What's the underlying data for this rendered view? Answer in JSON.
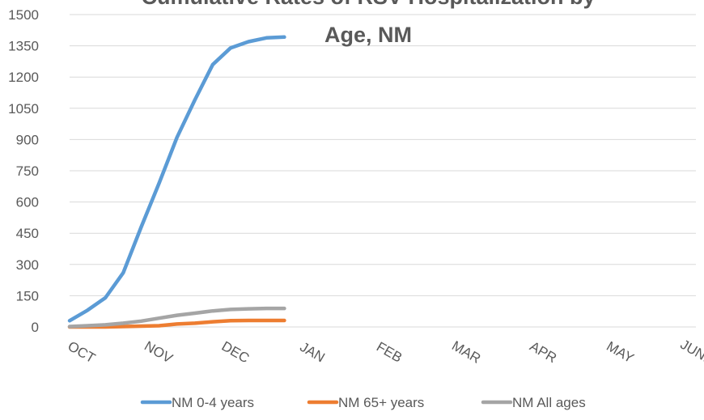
{
  "chart_data": {
    "type": "line",
    "title_lines": [
      "Cumulative Rates of RSV Hospitalization by",
      "Age, NM"
    ],
    "xlabel": "",
    "ylabel": "",
    "x_ticks": [
      "OCT",
      "NOV",
      "DEC",
      "JAN",
      "FEB",
      "MAR",
      "APR",
      "MAY",
      "JUNE"
    ],
    "x_tick_positions": [
      0,
      4.3,
      8.6,
      12.9,
      17.2,
      21.5,
      25.8,
      30.1,
      34.4
    ],
    "y_ticks": [
      0,
      150,
      300,
      450,
      600,
      750,
      900,
      1050,
      1200,
      1350,
      1500
    ],
    "ylim": [
      0,
      1500
    ],
    "xlim": [
      0,
      35
    ],
    "grid": true,
    "legend_position": "bottom",
    "x": [
      0,
      1,
      2,
      3,
      4,
      5,
      6,
      7,
      8,
      9,
      10,
      11,
      12
    ],
    "series": [
      {
        "name": "NM 0-4 years",
        "color": "#5b9bd5",
        "values": [
          30,
          80,
          140,
          260,
          480,
          690,
          910,
          1090,
          1260,
          1340,
          1370,
          1388,
          1392
        ]
      },
      {
        "name": "NM 65+ years",
        "color": "#ed7d31",
        "values": [
          0,
          0,
          0,
          2,
          4,
          6,
          14,
          18,
          25,
          30,
          31,
          31,
          31
        ]
      },
      {
        "name": "NM All ages",
        "color": "#a5a5a5",
        "values": [
          2,
          6,
          10,
          18,
          28,
          42,
          56,
          66,
          77,
          84,
          87,
          89,
          89
        ]
      }
    ],
    "colors": {
      "grid": "#d9d9d9",
      "text": "#595959"
    }
  }
}
